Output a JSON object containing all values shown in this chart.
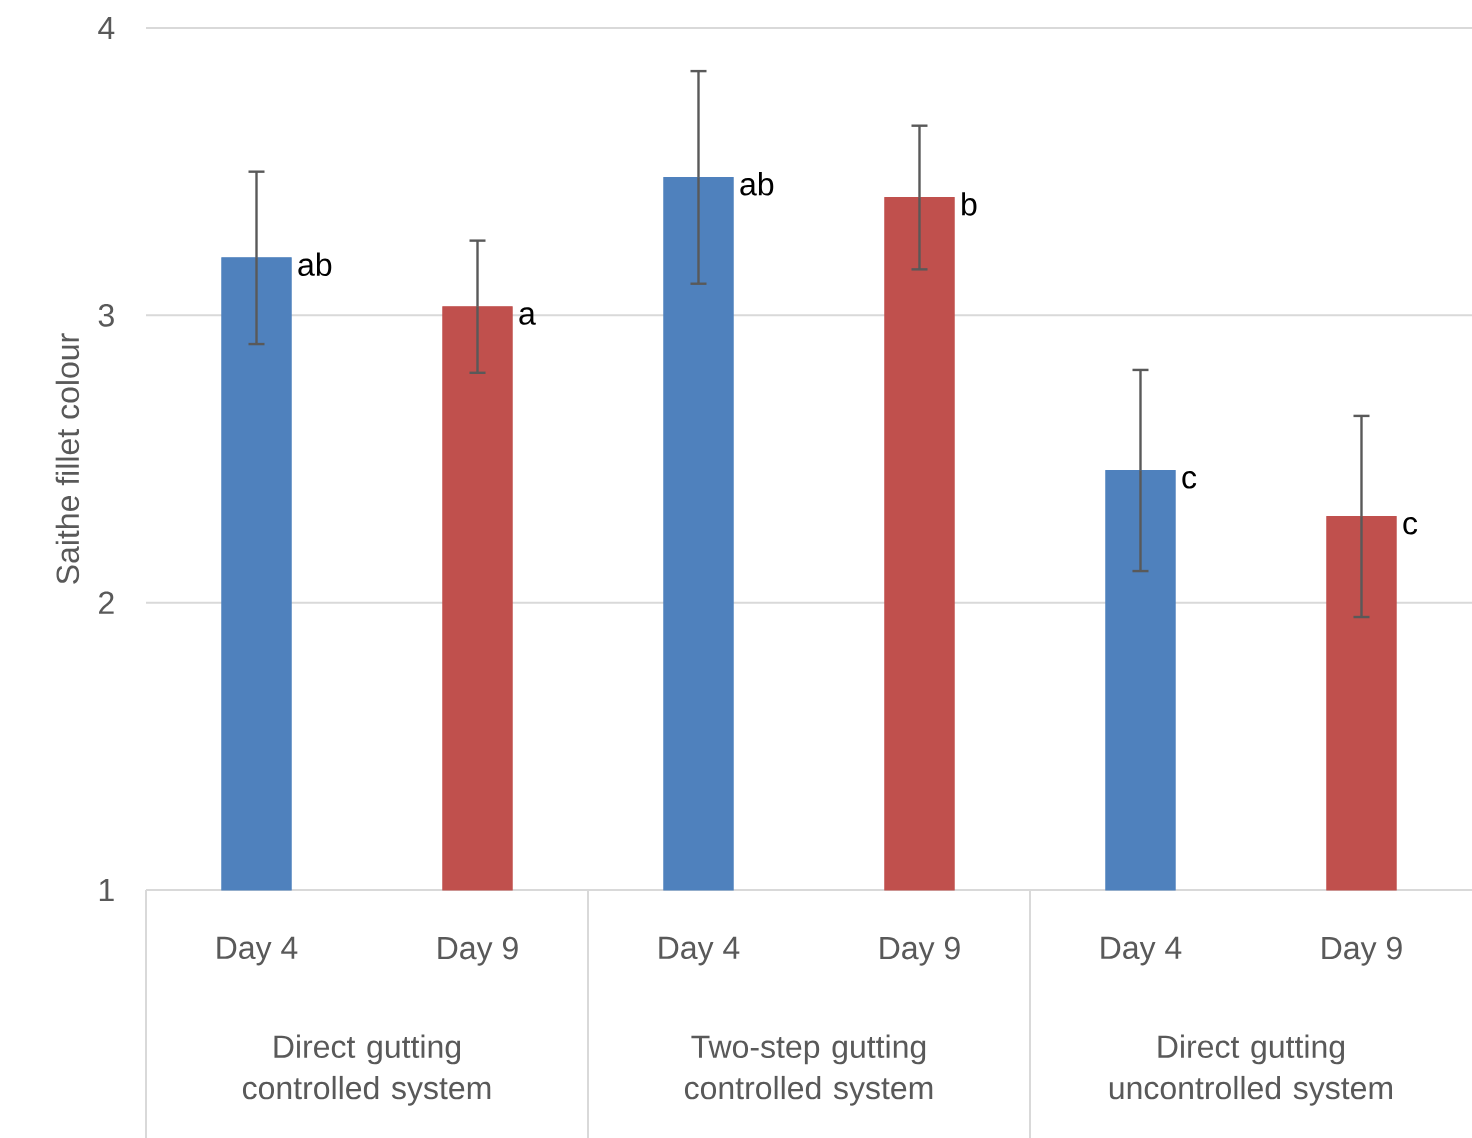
{
  "chart_data": {
    "type": "bar",
    "ylabel": "Saithe fillet colour",
    "categories": [
      "Day 4",
      "Day 9",
      "Day 4",
      "Day 9",
      "Day 4",
      "Day 9"
    ],
    "values": [
      3.2,
      3.03,
      3.48,
      3.41,
      2.46,
      2.3
    ],
    "errors": [
      0.3,
      0.23,
      0.37,
      0.25,
      0.35,
      0.35
    ],
    "colors": [
      "#4f81bd",
      "#c0504d",
      "#4f81bd",
      "#c0504d",
      "#4f81bd",
      "#c0504d"
    ],
    "value_labels": [
      "ab",
      "a",
      "ab",
      "b",
      "c",
      "c"
    ],
    "ylim": [
      1,
      4
    ],
    "yticks": [
      1,
      2,
      3,
      4
    ],
    "grid": "y",
    "annotations": [
      "Direct gutting controlled system",
      "Two-step gutting controlled system",
      "Direct gutting uncontrolled system"
    ]
  }
}
